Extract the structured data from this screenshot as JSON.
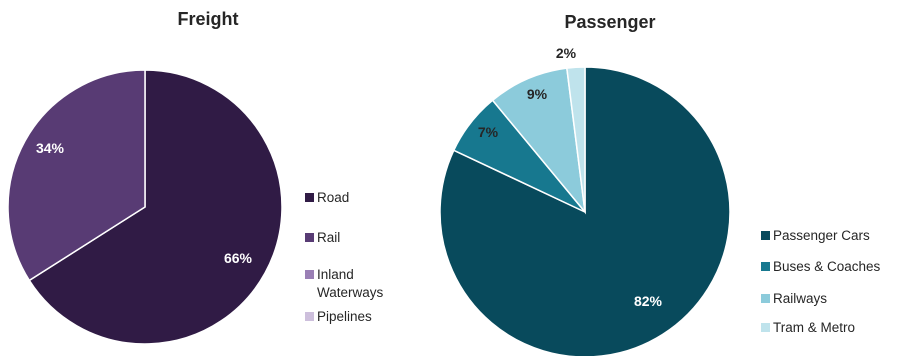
{
  "chart_data": [
    {
      "type": "pie",
      "title": "Freight",
      "series": [
        {
          "name": "Road",
          "value": 66,
          "label": "66%",
          "color": "#301b45"
        },
        {
          "name": "Rail",
          "value": 34,
          "label": "34%",
          "color": "#583b74"
        },
        {
          "name": "Inland Waterways",
          "value": 0,
          "label": "",
          "color": "#9a7fb5"
        },
        {
          "name": "Pipelines",
          "value": 0,
          "label": "",
          "color": "#cdbfdc"
        }
      ],
      "legend_position": "right",
      "label_colors": [
        "#ffffff",
        "#ffffff",
        "#262626",
        "#262626"
      ]
    },
    {
      "type": "pie",
      "title": "Passenger",
      "series": [
        {
          "name": "Passenger Cars",
          "value": 82,
          "label": "82%",
          "color": "#084a5c"
        },
        {
          "name": "Buses & Coaches",
          "value": 7,
          "label": "7%",
          "color": "#17788f"
        },
        {
          "name": "Railways",
          "value": 9,
          "label": "9%",
          "color": "#8ccbdb"
        },
        {
          "name": "Tram & Metro",
          "value": 2,
          "label": "2%",
          "color": "#bfe3ec"
        }
      ],
      "legend_position": "right",
      "label_colors": [
        "#ffffff",
        "#262626",
        "#262626",
        "#262626"
      ]
    }
  ]
}
